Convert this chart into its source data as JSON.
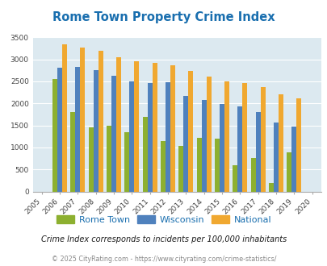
{
  "title": "Rome Town Property Crime Index",
  "years": [
    "2005",
    "2006",
    "2007",
    "2008",
    "2009",
    "2010",
    "2011",
    "2012",
    "2013",
    "2014",
    "2015",
    "2016",
    "2017",
    "2018",
    "2019",
    "2020"
  ],
  "rome_town": [
    null,
    2550,
    1800,
    1450,
    1500,
    1350,
    1700,
    1150,
    1040,
    1220,
    1200,
    600,
    760,
    190,
    880,
    null
  ],
  "wisconsin": [
    null,
    2800,
    2820,
    2750,
    2620,
    2500,
    2460,
    2480,
    2170,
    2080,
    1990,
    1930,
    1800,
    1560,
    1470,
    null
  ],
  "national": [
    null,
    3340,
    3260,
    3200,
    3040,
    2950,
    2920,
    2860,
    2730,
    2600,
    2500,
    2470,
    2370,
    2200,
    2110,
    null
  ],
  "rome_town_color": "#8db030",
  "wisconsin_color": "#4f81bd",
  "national_color": "#f0a830",
  "bg_color": "#dce9f0",
  "ylim": [
    0,
    3500
  ],
  "yticks": [
    0,
    500,
    1000,
    1500,
    2000,
    2500,
    3000,
    3500
  ],
  "legend_labels": [
    "Rome Town",
    "Wisconsin",
    "National"
  ],
  "subtitle": "Crime Index corresponds to incidents per 100,000 inhabitants",
  "footer": "© 2025 CityRating.com - https://www.cityrating.com/crime-statistics/",
  "title_color": "#1a6faf",
  "subtitle_color": "#1a1a1a",
  "footer_color": "#888888",
  "legend_text_color": "#1a6faf"
}
